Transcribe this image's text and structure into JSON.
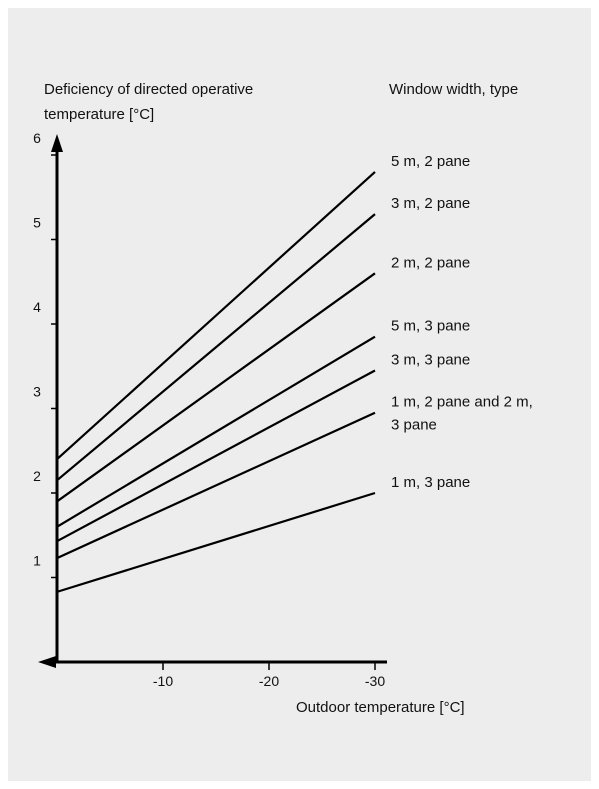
{
  "chart_data": {
    "type": "line",
    "title": "",
    "ylabel_lines": [
      "Deficiency of directed operative",
      "temperature [°C]"
    ],
    "xlabel": "Outdoor temperature [°C]",
    "legend_title": "Window width, type",
    "x_ticks": [
      {
        "value": -10,
        "label": "-10"
      },
      {
        "value": -20,
        "label": "-20"
      },
      {
        "value": -30,
        "label": "-30"
      }
    ],
    "y_ticks": [
      {
        "value": 1,
        "label": "1"
      },
      {
        "value": 2,
        "label": "2"
      },
      {
        "value": 3,
        "label": "3"
      },
      {
        "value": 4,
        "label": "4"
      },
      {
        "value": 5,
        "label": "5"
      },
      {
        "value": 6,
        "label": "6"
      }
    ],
    "xlim": [
      0,
      -30
    ],
    "ylim": [
      0,
      6
    ],
    "grid": false,
    "series": [
      {
        "name": "5 m, 2 pane",
        "label_lines": [
          "5 m, 2 pane"
        ],
        "x": [
          0,
          -30
        ],
        "y": [
          2.4,
          5.8
        ]
      },
      {
        "name": "3 m, 2 pane",
        "label_lines": [
          "3 m, 2 pane"
        ],
        "x": [
          0,
          -30
        ],
        "y": [
          2.15,
          5.3
        ]
      },
      {
        "name": "2 m, 2 pane",
        "label_lines": [
          "2 m, 2 pane"
        ],
        "x": [
          0,
          -30
        ],
        "y": [
          1.9,
          4.6
        ]
      },
      {
        "name": "5 m, 3 pane",
        "label_lines": [
          "5 m, 3 pane"
        ],
        "x": [
          0,
          -30
        ],
        "y": [
          1.6,
          3.85
        ]
      },
      {
        "name": "3 m, 3 pane",
        "label_lines": [
          "3 m, 3 pane"
        ],
        "x": [
          0,
          -30
        ],
        "y": [
          1.43,
          3.45
        ]
      },
      {
        "name": "1 m, 2 pane and 2 m, 3 pane",
        "label_lines": [
          "1 m, 2 pane and 2 m,",
          "3 pane"
        ],
        "x": [
          0,
          -30
        ],
        "y": [
          1.23,
          2.95
        ]
      },
      {
        "name": "1 m, 3 pane",
        "label_lines": [
          "1 m, 3 pane"
        ],
        "x": [
          0,
          -30
        ],
        "y": [
          0.83,
          2.0
        ]
      }
    ]
  }
}
